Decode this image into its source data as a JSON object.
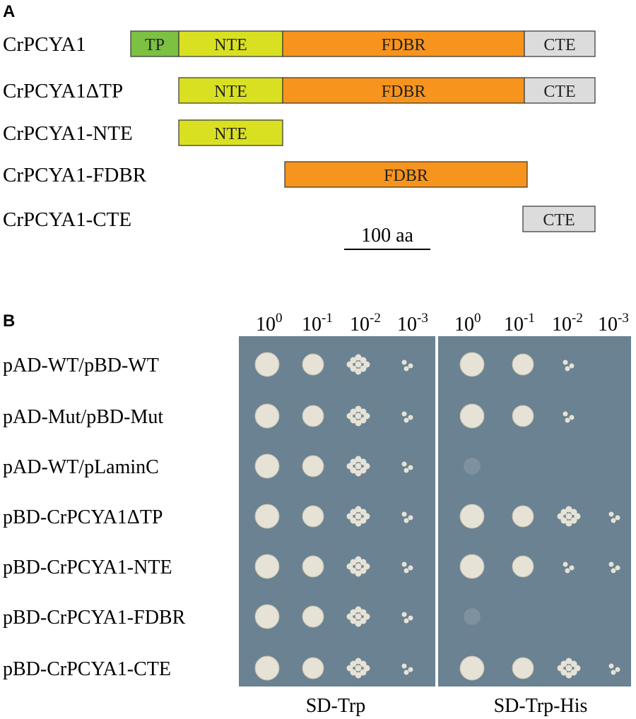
{
  "panel_a": {
    "label": "A",
    "constructs": [
      {
        "name": "CrPCYA1",
        "domains": [
          "TP",
          "NTE",
          "FDBR",
          "CTE"
        ]
      },
      {
        "name": "CrPCYA1ΔTP",
        "domains": [
          "NTE",
          "FDBR",
          "CTE"
        ]
      },
      {
        "name": "CrPCYA1-NTE",
        "domains": [
          "NTE"
        ]
      },
      {
        "name": "CrPCYA1-FDBR",
        "domains": [
          "FDBR"
        ]
      },
      {
        "name": "CrPCYA1-CTE",
        "domains": [
          "CTE"
        ]
      }
    ],
    "scale_bar": "100 aa"
  },
  "panel_b": {
    "label": "B",
    "dilutions": [
      {
        "base": "10",
        "exponent": "0"
      },
      {
        "base": "10",
        "exponent": "-1"
      },
      {
        "base": "10",
        "exponent": "-2"
      },
      {
        "base": "10",
        "exponent": "-3"
      }
    ],
    "rows": [
      "pAD-WT/pBD-WT",
      "pAD-Mut/pBD-Mut",
      "pAD-WT/pLaminC",
      "pBD-CrPCYA1ΔTP",
      "pBD-CrPCYA1-NTE",
      "pBD-CrPCYA1-FDBR",
      "pBD-CrPCYA1-CTE"
    ],
    "plates": [
      "SD-Trp",
      "SD-Trp-His"
    ]
  }
}
